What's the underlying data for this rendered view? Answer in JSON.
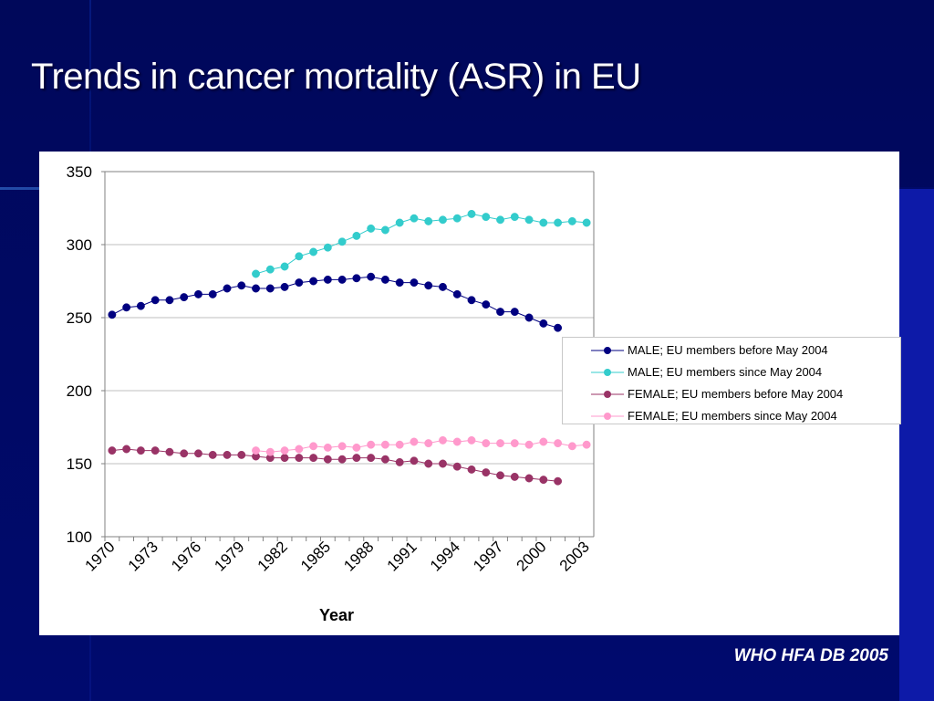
{
  "slide": {
    "title": "Trends in cancer mortality (ASR) in EU",
    "source": "WHO HFA DB 2005"
  },
  "colors": {
    "background": "#000a6e",
    "male_before": "#000080",
    "male_since": "#33cccc",
    "female_before": "#993366",
    "female_since": "#ff99cc"
  },
  "chart_data": {
    "type": "line",
    "title": "",
    "xlabel": "Year",
    "ylabel": "",
    "ylim": [
      100,
      350
    ],
    "yticks": [
      "100",
      "150",
      "200",
      "250",
      "300",
      "350"
    ],
    "xticks": [
      "1970",
      "1973",
      "1976",
      "1979",
      "1982",
      "1985",
      "1988",
      "1991",
      "1994",
      "1997",
      "2000",
      "2003"
    ],
    "x": [
      1970,
      1971,
      1972,
      1973,
      1974,
      1975,
      1976,
      1977,
      1978,
      1979,
      1980,
      1981,
      1982,
      1983,
      1984,
      1985,
      1986,
      1987,
      1988,
      1989,
      1990,
      1991,
      1992,
      1993,
      1994,
      1995,
      1996,
      1997,
      1998,
      1999,
      2000,
      2001,
      2002,
      2003
    ],
    "grid": "horizontal",
    "legend_position": "right",
    "series": [
      {
        "name": "MALE; EU members before May 2004",
        "color": "#000080",
        "values": [
          252,
          257,
          258,
          262,
          262,
          264,
          266,
          266,
          270,
          272,
          270,
          270,
          271,
          274,
          275,
          276,
          276,
          277,
          278,
          276,
          274,
          274,
          272,
          271,
          266,
          262,
          259,
          254,
          254,
          250,
          246,
          243,
          null,
          null
        ]
      },
      {
        "name": "MALE; EU members since May 2004",
        "color": "#33cccc",
        "values": [
          null,
          null,
          null,
          null,
          null,
          null,
          null,
          null,
          null,
          null,
          280,
          283,
          285,
          292,
          295,
          298,
          302,
          306,
          311,
          310,
          315,
          318,
          316,
          317,
          318,
          321,
          319,
          317,
          319,
          317,
          315,
          315,
          316,
          315
        ]
      },
      {
        "name": "FEMALE; EU members before May 2004",
        "color": "#993366",
        "values": [
          159,
          160,
          159,
          159,
          158,
          157,
          157,
          156,
          156,
          156,
          155,
          154,
          154,
          154,
          154,
          153,
          153,
          154,
          154,
          153,
          151,
          152,
          150,
          150,
          148,
          146,
          144,
          142,
          141,
          140,
          139,
          138,
          null,
          null
        ]
      },
      {
        "name": "FEMALE; EU members since May 2004",
        "color": "#ff99cc",
        "values": [
          null,
          null,
          null,
          null,
          null,
          null,
          null,
          null,
          null,
          null,
          159,
          158,
          159,
          160,
          162,
          161,
          162,
          161,
          163,
          163,
          163,
          165,
          164,
          166,
          165,
          166,
          164,
          164,
          164,
          163,
          165,
          164,
          162,
          163
        ]
      }
    ]
  }
}
